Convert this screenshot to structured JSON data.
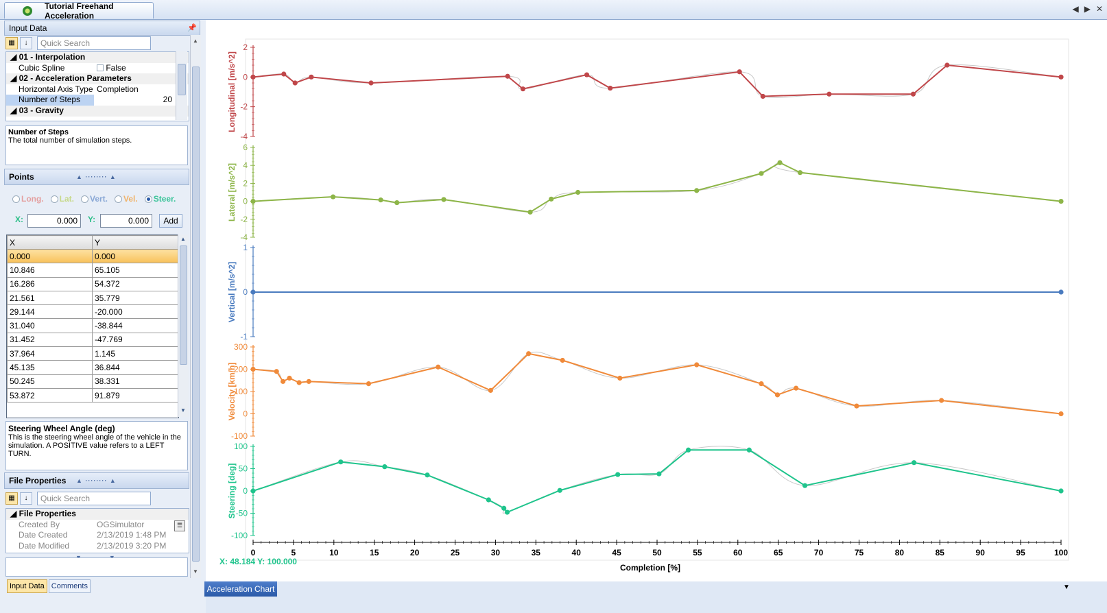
{
  "document_tab": {
    "title": "Tutorial Freehand Acceleration"
  },
  "input_panel": {
    "title": "Input Data",
    "pin_icon": "pin-icon",
    "search_placeholder": "Quick Search",
    "properties": [
      {
        "category": "01 - Interpolation",
        "items": [
          {
            "key": "Cubic Spline",
            "value": "False"
          }
        ]
      },
      {
        "category": "02 - Acceleration Parameters",
        "items": [
          {
            "key": "Horizontal Axis Type",
            "value": "Completion"
          },
          {
            "key": "Number of Steps",
            "value": "20"
          }
        ]
      },
      {
        "category": "03 - Gravity",
        "items": []
      }
    ],
    "description": {
      "title": "Number of Steps",
      "text": "The total number of simulation steps."
    }
  },
  "points_panel": {
    "title": "Points",
    "radios": [
      {
        "label": "Long.",
        "color": "#e4a0a0",
        "selected": false
      },
      {
        "label": "Lat.",
        "color": "#c7d98a",
        "selected": false
      },
      {
        "label": "Vert.",
        "color": "#8aa8d6",
        "selected": false
      },
      {
        "label": "Vel.",
        "color": "#f0b36a",
        "selected": false
      },
      {
        "label": "Steer.",
        "color": "#3cc49a",
        "selected": true
      }
    ],
    "x_label": "X:",
    "x_value": "0.000",
    "y_label": "Y:",
    "y_value": "0.000",
    "add_label": "Add",
    "columns": [
      "X",
      "Y"
    ],
    "rows": [
      [
        "0.000",
        "0.000"
      ],
      [
        "10.846",
        "65.105"
      ],
      [
        "16.286",
        "54.372"
      ],
      [
        "21.561",
        "35.779"
      ],
      [
        "29.144",
        "-20.000"
      ],
      [
        "31.040",
        "-38.844"
      ],
      [
        "31.452",
        "-47.769"
      ],
      [
        "37.964",
        "1.145"
      ],
      [
        "45.135",
        "36.844"
      ],
      [
        "50.245",
        "38.331"
      ],
      [
        "53.872",
        "91.879"
      ]
    ],
    "description": {
      "title": "Steering Wheel Angle (deg)",
      "text": "This is the steering wheel angle of the vehicle in the simulation. A POSITIVE value refers to a LEFT TURN."
    }
  },
  "file_panel": {
    "title": "File Properties",
    "search_placeholder": "Quick Search",
    "category": "File Properties",
    "items": [
      {
        "key": "Created By",
        "value": "OGSimulator"
      },
      {
        "key": "Date Created",
        "value": "2/13/2019 1:48 PM"
      },
      {
        "key": "Date Modified",
        "value": "2/13/2019 3:20 PM"
      }
    ]
  },
  "bottom_tabs": [
    {
      "label": "Input Data",
      "active": true
    },
    {
      "label": "Comments",
      "active": false
    }
  ],
  "chart_tab": {
    "label": "Acceleration Chart"
  },
  "cursor_readout": "X: 48.184 Y: 100.000",
  "chart_data": {
    "type": "line",
    "xlabel": "Completion [%]",
    "xlim": [
      0,
      100
    ],
    "xticks": [
      0,
      5,
      10,
      15,
      20,
      25,
      30,
      35,
      40,
      45,
      50,
      55,
      60,
      65,
      70,
      75,
      80,
      85,
      90,
      95,
      100
    ],
    "panels": [
      {
        "ylabel": "Longitudinal [m/s^2]",
        "color": "#c0474a",
        "ylim": [
          -4,
          2
        ],
        "yticks": [
          2,
          0,
          -2,
          -4
        ],
        "x": [
          0,
          3.8,
          5.2,
          7.2,
          14.6,
          31.5,
          33.4,
          41.3,
          44.2,
          60.2,
          63.1,
          71.3,
          81.7,
          85.9,
          100
        ],
        "y": [
          0,
          0.2,
          -0.4,
          0,
          -0.4,
          0.05,
          -0.8,
          0.15,
          -0.75,
          0.35,
          -1.3,
          -1.15,
          -1.15,
          0.8,
          0
        ]
      },
      {
        "ylabel": "Lateral [m/s^2]",
        "color": "#8db548",
        "ylim": [
          -4,
          6
        ],
        "yticks": [
          6,
          4,
          2,
          0,
          -2,
          -4
        ],
        "x": [
          0,
          9.9,
          15.8,
          17.8,
          23.6,
          34.3,
          36.9,
          40.2,
          54.9,
          62.9,
          65.2,
          67.7,
          100
        ],
        "y": [
          0,
          0.5,
          0.15,
          -0.15,
          0.2,
          -1.2,
          0.25,
          1,
          1.2,
          3.1,
          4.3,
          3.2,
          0
        ]
      },
      {
        "ylabel": "Vertical [m/s^2]",
        "color": "#4a7bbf",
        "ylim": [
          -1,
          1
        ],
        "yticks": [
          1,
          0,
          -1
        ],
        "x": [
          0,
          100
        ],
        "y": [
          0,
          0
        ]
      },
      {
        "ylabel": "Velocity [km/h]",
        "color": "#f08a3a",
        "ylim": [
          -100,
          300
        ],
        "yticks": [
          300,
          200,
          100,
          0,
          -100
        ],
        "x": [
          0,
          2.9,
          3.7,
          4.5,
          5.7,
          6.9,
          14.3,
          22.9,
          29.4,
          34.1,
          38.3,
          45.4,
          54.9,
          62.9,
          64.9,
          67.2,
          74.7,
          85.2,
          100
        ],
        "y": [
          200,
          190,
          145,
          160,
          140,
          145,
          135,
          210,
          105,
          270,
          240,
          160,
          220,
          135,
          85,
          115,
          35,
          60,
          0
        ]
      },
      {
        "ylabel": "Steering [deg]",
        "color": "#1fc48c",
        "ylim": [
          -100,
          100
        ],
        "yticks": [
          100,
          50,
          0,
          -50,
          -100
        ],
        "x": [
          0,
          10.846,
          16.286,
          21.561,
          29.144,
          31.04,
          31.452,
          37.964,
          45.135,
          50.245,
          53.872,
          61.4,
          68.3,
          81.8,
          100
        ],
        "y": [
          0,
          65.105,
          54.372,
          35.779,
          -20,
          -38.844,
          -47.769,
          1.145,
          36.844,
          38.331,
          91.879,
          91.879,
          12,
          63.5,
          0
        ]
      }
    ]
  }
}
